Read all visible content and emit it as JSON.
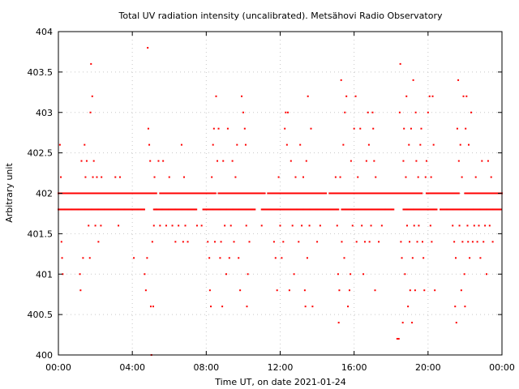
{
  "chart_data": {
    "type": "scatter",
    "title": "Total UV radiation intensity (uncalibrated). Metsähovi Radio Observatory",
    "xlabel": "Time UT, on date 2021-01-24",
    "ylabel": "Arbitrary unit",
    "xlim": [
      "00:00",
      "24:00"
    ],
    "ylim": [
      400,
      404
    ],
    "x_ticks": [
      "00:00",
      "04:00",
      "08:00",
      "12:00",
      "16:00",
      "20:00",
      "00:00"
    ],
    "y_ticks": [
      "400",
      "400.5",
      "401",
      "401.5",
      "402",
      "402.5",
      "403",
      "403.5",
      "404"
    ],
    "grid": true,
    "marker_color": "#ff0000",
    "series": [
      {
        "points": [
          [
            "00:05",
            402.6
          ],
          [
            "00:08",
            402.2
          ],
          [
            "00:10",
            401.4
          ],
          [
            "00:12",
            401.2
          ],
          [
            "00:14",
            401.0
          ],
          [
            "01:02",
            402.0
          ],
          [
            "01:10",
            401.0
          ],
          [
            "01:12",
            400.8
          ],
          [
            "01:15",
            402.4
          ],
          [
            "01:20",
            401.2
          ],
          [
            "01:25",
            402.6
          ],
          [
            "01:28",
            402.2
          ],
          [
            "01:32",
            402.4
          ],
          [
            "01:38",
            401.6
          ],
          [
            "01:42",
            401.2
          ],
          [
            "01:44",
            403.0
          ],
          [
            "01:46",
            403.6
          ],
          [
            "01:50",
            403.2
          ],
          [
            "01:52",
            402.2
          ],
          [
            "01:55",
            402.4
          ],
          [
            "02:00",
            401.6
          ],
          [
            "02:05",
            402.2
          ],
          [
            "02:10",
            401.4
          ],
          [
            "02:18",
            401.6
          ],
          [
            "02:20",
            402.2
          ],
          [
            "03:05",
            402.2
          ],
          [
            "03:15",
            401.6
          ],
          [
            "03:20",
            402.2
          ],
          [
            "04:05",
            401.2
          ],
          [
            "04:40",
            401.0
          ],
          [
            "04:44",
            400.8
          ],
          [
            "04:48",
            401.2
          ],
          [
            "04:50",
            403.8
          ],
          [
            "04:52",
            402.8
          ],
          [
            "04:55",
            402.6
          ],
          [
            "04:58",
            402.4
          ],
          [
            "05:00",
            400.6
          ],
          [
            "05:02",
            400.0
          ],
          [
            "05:05",
            401.4
          ],
          [
            "05:08",
            400.6
          ],
          [
            "05:10",
            401.6
          ],
          [
            "05:12",
            402.2
          ],
          [
            "05:18",
            401.8
          ],
          [
            "05:25",
            402.4
          ],
          [
            "05:30",
            401.6
          ],
          [
            "05:40",
            402.4
          ],
          [
            "05:50",
            401.6
          ],
          [
            "06:00",
            402.2
          ],
          [
            "06:10",
            401.6
          ],
          [
            "06:20",
            401.4
          ],
          [
            "06:30",
            401.6
          ],
          [
            "06:40",
            402.6
          ],
          [
            "06:45",
            401.4
          ],
          [
            "06:48",
            402.2
          ],
          [
            "06:52",
            401.6
          ],
          [
            "07:00",
            401.4
          ],
          [
            "07:30",
            401.6
          ],
          [
            "07:45",
            401.6
          ],
          [
            "08:05",
            401.4
          ],
          [
            "08:10",
            401.2
          ],
          [
            "08:12",
            400.8
          ],
          [
            "08:15",
            400.6
          ],
          [
            "08:18",
            402.2
          ],
          [
            "08:22",
            402.6
          ],
          [
            "08:25",
            402.8
          ],
          [
            "08:28",
            401.4
          ],
          [
            "08:32",
            403.2
          ],
          [
            "08:36",
            402.4
          ],
          [
            "08:40",
            402.8
          ],
          [
            "08:45",
            401.2
          ],
          [
            "08:48",
            401.4
          ],
          [
            "08:52",
            400.6
          ],
          [
            "08:55",
            402.4
          ],
          [
            "09:00",
            401.6
          ],
          [
            "09:05",
            401.0
          ],
          [
            "09:10",
            402.8
          ],
          [
            "09:15",
            401.2
          ],
          [
            "09:20",
            401.6
          ],
          [
            "09:25",
            402.4
          ],
          [
            "09:30",
            401.4
          ],
          [
            "09:35",
            402.2
          ],
          [
            "09:40",
            402.6
          ],
          [
            "09:45",
            401.2
          ],
          [
            "09:50",
            400.8
          ],
          [
            "09:55",
            403.2
          ],
          [
            "10:00",
            403.0
          ],
          [
            "10:05",
            402.8
          ],
          [
            "10:08",
            402.6
          ],
          [
            "10:10",
            401.6
          ],
          [
            "10:12",
            400.6
          ],
          [
            "10:15",
            401.0
          ],
          [
            "10:20",
            401.4
          ],
          [
            "11:00",
            401.6
          ],
          [
            "11:40",
            401.4
          ],
          [
            "11:45",
            401.2
          ],
          [
            "11:50",
            400.8
          ],
          [
            "11:55",
            402.2
          ],
          [
            "12:00",
            401.6
          ],
          [
            "12:05",
            401.2
          ],
          [
            "12:10",
            401.4
          ],
          [
            "12:15",
            402.8
          ],
          [
            "12:18",
            403.0
          ],
          [
            "12:22",
            402.6
          ],
          [
            "12:25",
            403.0
          ],
          [
            "12:30",
            400.8
          ],
          [
            "12:35",
            402.4
          ],
          [
            "12:40",
            401.6
          ],
          [
            "12:45",
            401.0
          ],
          [
            "12:50",
            402.2
          ],
          [
            "13:00",
            401.4
          ],
          [
            "13:05",
            402.6
          ],
          [
            "13:10",
            401.6
          ],
          [
            "13:15",
            402.2
          ],
          [
            "13:20",
            400.8
          ],
          [
            "13:22",
            400.6
          ],
          [
            "13:25",
            402.4
          ],
          [
            "13:28",
            401.2
          ],
          [
            "13:30",
            403.2
          ],
          [
            "13:35",
            401.6
          ],
          [
            "13:40",
            402.8
          ],
          [
            "13:45",
            400.6
          ],
          [
            "14:00",
            401.4
          ],
          [
            "14:10",
            401.6
          ],
          [
            "15:00",
            402.2
          ],
          [
            "15:05",
            401.6
          ],
          [
            "15:08",
            401.0
          ],
          [
            "15:10",
            400.4
          ],
          [
            "15:12",
            400.8
          ],
          [
            "15:15",
            402.2
          ],
          [
            "15:18",
            403.4
          ],
          [
            "15:20",
            401.4
          ],
          [
            "15:25",
            402.6
          ],
          [
            "15:28",
            401.2
          ],
          [
            "15:30",
            403.0
          ],
          [
            "15:35",
            403.2
          ],
          [
            "15:40",
            400.6
          ],
          [
            "15:45",
            400.8
          ],
          [
            "15:48",
            401.0
          ],
          [
            "15:50",
            402.4
          ],
          [
            "15:55",
            401.6
          ],
          [
            "16:00",
            402.8
          ],
          [
            "16:05",
            403.2
          ],
          [
            "16:08",
            401.4
          ],
          [
            "16:12",
            402.2
          ],
          [
            "16:20",
            402.8
          ],
          [
            "16:25",
            401.6
          ],
          [
            "16:30",
            401.0
          ],
          [
            "16:35",
            401.4
          ],
          [
            "16:40",
            402.4
          ],
          [
            "16:45",
            403.0
          ],
          [
            "16:48",
            402.6
          ],
          [
            "16:50",
            401.4
          ],
          [
            "16:55",
            401.6
          ],
          [
            "17:00",
            403.0
          ],
          [
            "17:02",
            402.8
          ],
          [
            "17:05",
            402.4
          ],
          [
            "17:08",
            400.8
          ],
          [
            "17:10",
            402.2
          ],
          [
            "17:20",
            401.4
          ],
          [
            "17:30",
            401.6
          ],
          [
            "18:20",
            400.2
          ],
          [
            "18:25",
            400.2
          ],
          [
            "18:28",
            403.0
          ],
          [
            "18:30",
            403.6
          ],
          [
            "18:32",
            401.4
          ],
          [
            "18:35",
            401.2
          ],
          [
            "18:38",
            400.4
          ],
          [
            "18:40",
            402.4
          ],
          [
            "18:42",
            402.8
          ],
          [
            "18:45",
            401.0
          ],
          [
            "18:48",
            402.2
          ],
          [
            "18:50",
            403.2
          ],
          [
            "18:52",
            401.6
          ],
          [
            "18:55",
            400.6
          ],
          [
            "18:58",
            402.6
          ],
          [
            "19:00",
            401.4
          ],
          [
            "19:02",
            400.8
          ],
          [
            "19:05",
            402.8
          ],
          [
            "19:08",
            400.4
          ],
          [
            "19:10",
            401.2
          ],
          [
            "19:12",
            403.4
          ],
          [
            "19:15",
            401.6
          ],
          [
            "19:18",
            400.8
          ],
          [
            "19:20",
            403.0
          ],
          [
            "19:22",
            402.4
          ],
          [
            "19:25",
            401.4
          ],
          [
            "19:28",
            402.2
          ],
          [
            "19:30",
            401.6
          ],
          [
            "19:35",
            402.6
          ],
          [
            "19:38",
            402.8
          ],
          [
            "19:42",
            401.4
          ],
          [
            "19:45",
            401.2
          ],
          [
            "19:48",
            400.8
          ],
          [
            "19:52",
            402.2
          ],
          [
            "19:55",
            402.4
          ],
          [
            "20:00",
            403.0
          ],
          [
            "20:05",
            403.2
          ],
          [
            "20:08",
            401.6
          ],
          [
            "20:10",
            402.2
          ],
          [
            "20:12",
            401.4
          ],
          [
            "20:15",
            403.2
          ],
          [
            "20:18",
            402.6
          ],
          [
            "20:22",
            400.8
          ],
          [
            "21:20",
            401.6
          ],
          [
            "21:25",
            401.4
          ],
          [
            "21:28",
            400.6
          ],
          [
            "21:30",
            401.2
          ],
          [
            "21:32",
            400.4
          ],
          [
            "21:35",
            402.8
          ],
          [
            "21:38",
            403.4
          ],
          [
            "21:40",
            402.4
          ],
          [
            "21:42",
            401.6
          ],
          [
            "21:45",
            402.6
          ],
          [
            "21:48",
            400.8
          ],
          [
            "21:50",
            402.2
          ],
          [
            "21:52",
            401.4
          ],
          [
            "21:55",
            403.2
          ],
          [
            "21:58",
            401.0
          ],
          [
            "22:00",
            400.6
          ],
          [
            "22:02",
            402.8
          ],
          [
            "22:05",
            403.2
          ],
          [
            "22:08",
            401.6
          ],
          [
            "22:10",
            401.4
          ],
          [
            "22:12",
            402.6
          ],
          [
            "22:15",
            401.2
          ],
          [
            "22:20",
            403.0
          ],
          [
            "22:25",
            401.4
          ],
          [
            "22:30",
            401.6
          ],
          [
            "22:35",
            402.2
          ],
          [
            "22:40",
            401.4
          ],
          [
            "22:45",
            401.6
          ],
          [
            "22:50",
            401.2
          ],
          [
            "22:55",
            402.4
          ],
          [
            "23:00",
            401.4
          ],
          [
            "23:05",
            401.6
          ],
          [
            "23:10",
            401.0
          ],
          [
            "23:15",
            402.4
          ],
          [
            "23:20",
            401.6
          ],
          [
            "23:25",
            402.2
          ],
          [
            "23:30",
            401.4
          ],
          [
            "23:40",
            402.0
          ],
          [
            "23:50",
            402.0
          ]
        ]
      }
    ],
    "dense_bands": [
      {
        "y": 402.0,
        "spans": [
          [
            "00:00",
            "05:20"
          ],
          [
            "05:30",
            "08:30"
          ],
          [
            "08:40",
            "11:10"
          ],
          [
            "11:20",
            "14:30"
          ],
          [
            "14:40",
            "19:40"
          ],
          [
            "19:55",
            "21:40"
          ],
          [
            "22:00",
            "24:00"
          ]
        ]
      },
      {
        "y": 401.8,
        "spans": [
          [
            "00:00",
            "04:40"
          ],
          [
            "05:10",
            "07:30"
          ],
          [
            "07:50",
            "10:40"
          ],
          [
            "11:00",
            "15:10"
          ],
          [
            "15:20",
            "18:10"
          ],
          [
            "18:40",
            "20:30"
          ],
          [
            "20:40",
            "24:00"
          ]
        ]
      }
    ]
  }
}
